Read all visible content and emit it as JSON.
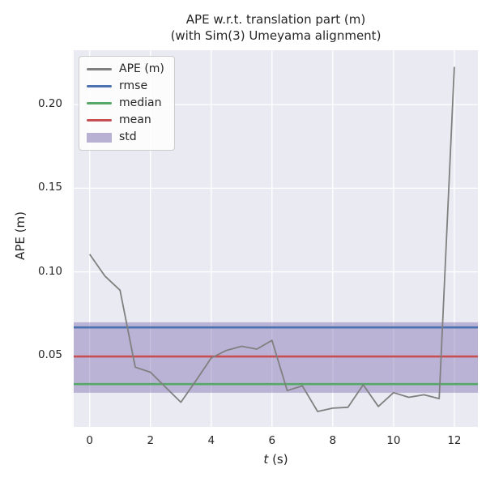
{
  "window": {
    "background": "#ffffff"
  },
  "chart_data": {
    "type": "line",
    "title": "APE w.r.t. translation part (m)\n(with Sim(3) Umeyama alignment)",
    "title_line1": "APE w.r.t. translation part (m)",
    "title_line2": "(with Sim(3) Umeyama alignment)",
    "xlabel": "t (s)",
    "xlabel_parts": [
      {
        "text": "t",
        "italic": true
      },
      {
        "text": " (s)",
        "italic": false
      }
    ],
    "ylabel": "APE (m)",
    "xlim": [
      -0.525,
      12.775
    ],
    "ylim": [
      0.0073,
      0.2325
    ],
    "xticks": [
      0,
      2,
      4,
      6,
      8,
      10,
      12
    ],
    "xtick_labels": [
      "0",
      "2",
      "4",
      "6",
      "8",
      "10",
      "12"
    ],
    "yticks": [
      0.05,
      0.1,
      0.15,
      0.2
    ],
    "ytick_labels": [
      "0.05",
      "0.10",
      "0.15",
      "0.20"
    ],
    "grid": true,
    "plot_background": "#eaeaf2",
    "grid_color": "#ffffff",
    "text_color": "#262626",
    "legend": {
      "position": "upper left",
      "entries": [
        "APE (m)",
        "rmse",
        "median",
        "mean",
        "std"
      ]
    },
    "series": [
      {
        "name": "APE (m)",
        "kind": "line",
        "color": "#808080",
        "linewidth": 1.8,
        "x": [
          0.0,
          0.5,
          1.0,
          1.5,
          2.0,
          2.5,
          3.0,
          3.5,
          4.0,
          4.5,
          5.0,
          5.5,
          6.0,
          6.5,
          7.0,
          7.5,
          8.0,
          8.5,
          9.0,
          9.5,
          10.0,
          10.5,
          11.0,
          11.5,
          12.0
        ],
        "y": [
          0.1105,
          0.0975,
          0.089,
          0.043,
          0.04,
          0.031,
          0.022,
          0.035,
          0.0485,
          0.053,
          0.0555,
          0.0538,
          0.059,
          0.029,
          0.0318,
          0.0165,
          0.0185,
          0.019,
          0.0325,
          0.0195,
          0.0278,
          0.025,
          0.0265,
          0.0242,
          0.2225
        ]
      },
      {
        "name": "rmse",
        "kind": "hline",
        "color": "#4c72b0",
        "value": 0.0668,
        "linewidth": 2.6
      },
      {
        "name": "median",
        "kind": "hline",
        "color": "#55a868",
        "value": 0.0329,
        "linewidth": 2.6
      },
      {
        "name": "mean",
        "kind": "hline",
        "color": "#c44e52",
        "value": 0.0494,
        "linewidth": 2.6
      },
      {
        "name": "std",
        "kind": "hband",
        "color": "#8172b2",
        "alpha": 0.45,
        "legend_alpha": 0.55,
        "range": [
          0.0277,
          0.0698
        ]
      }
    ]
  }
}
